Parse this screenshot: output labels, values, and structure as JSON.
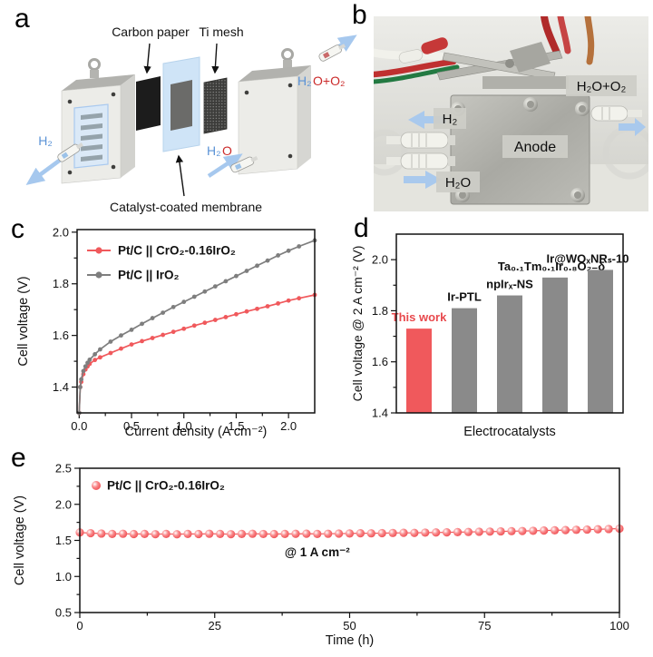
{
  "panels": {
    "a": {
      "label": "a",
      "labels": {
        "carbon_paper": "Carbon paper",
        "ti_mesh": "Ti mesh",
        "ccm": "Catalyst-coated membrane",
        "h2": "H₂",
        "h2o_h2": "H₂",
        "h2o_o": "O",
        "out_h2": "H₂",
        "out_o2": "O+O₂"
      }
    },
    "b": {
      "label": "b",
      "labels": {
        "outlet": "H₂O+O₂",
        "h2": "H₂",
        "anode": "Anode",
        "h2o": "H₂O"
      }
    },
    "c": {
      "label": "c"
    },
    "d": {
      "label": "d"
    },
    "e": {
      "label": "e"
    }
  },
  "colors": {
    "accent_red": "#f0595c",
    "series_gray": "#7e7e7e",
    "bar_gray": "#8a8a8a",
    "flow_arrow_blue": "#a6c8ee",
    "h2_label_blue": "#5b93d6",
    "o2_label_red": "#cb2a2a",
    "membrane_blue": "#cfe4f7"
  },
  "chart_data": [
    {
      "panel": "c",
      "type": "line",
      "xlabel": "Current density (A cm⁻²)",
      "ylabel": "Cell voltage (V)",
      "xlim": [
        -0.02,
        2.25
      ],
      "ylim": [
        1.3,
        2.01
      ],
      "xticks": [
        0.0,
        0.5,
        1.0,
        1.5,
        2.0
      ],
      "xtick_labels": [
        "0.0",
        "0.5",
        "1.0",
        "1.5",
        "2.0"
      ],
      "yticks": [
        1.4,
        1.6,
        1.8,
        2.0
      ],
      "ytick_labels": [
        "1.4",
        "1.6",
        "1.8",
        "2.0"
      ],
      "grid": false,
      "legend_position": "top-left",
      "series": [
        {
          "name": "Pt/C || CrO₂-0.16IrO₂",
          "color": "#f0595c",
          "x": [
            0,
            0.01,
            0.02,
            0.04,
            0.06,
            0.08,
            0.1,
            0.15,
            0.2,
            0.3,
            0.4,
            0.5,
            0.6,
            0.7,
            0.8,
            0.9,
            1.0,
            1.1,
            1.2,
            1.3,
            1.4,
            1.5,
            1.6,
            1.7,
            1.8,
            1.9,
            2.0,
            2.1,
            2.25
          ],
          "y": [
            1.3,
            1.4,
            1.42,
            1.45,
            1.468,
            1.48,
            1.49,
            1.505,
            1.515,
            1.532,
            1.549,
            1.565,
            1.578,
            1.59,
            1.602,
            1.614,
            1.626,
            1.638,
            1.649,
            1.66,
            1.671,
            1.682,
            1.693,
            1.703,
            1.713,
            1.724,
            1.735,
            1.744,
            1.757
          ]
        },
        {
          "name": "Pt/C || IrO₂",
          "color": "#7e7e7e",
          "x": [
            0,
            0.01,
            0.02,
            0.04,
            0.06,
            0.08,
            0.1,
            0.15,
            0.2,
            0.3,
            0.4,
            0.5,
            0.6,
            0.7,
            0.8,
            0.9,
            1.0,
            1.1,
            1.2,
            1.3,
            1.4,
            1.5,
            1.6,
            1.7,
            1.8,
            1.9,
            2.0,
            2.1,
            2.25
          ],
          "y": [
            1.3,
            1.4,
            1.43,
            1.462,
            1.48,
            1.494,
            1.506,
            1.527,
            1.546,
            1.576,
            1.6,
            1.622,
            1.645,
            1.667,
            1.688,
            1.71,
            1.73,
            1.75,
            1.77,
            1.79,
            1.81,
            1.83,
            1.85,
            1.87,
            1.89,
            1.91,
            1.928,
            1.945,
            1.968
          ]
        }
      ]
    },
    {
      "panel": "d",
      "type": "bar",
      "xlabel": "Electrocatalysts",
      "ylabel": "Cell voltage @ 2 A cm⁻² (V)",
      "ylim": [
        1.4,
        2.1
      ],
      "yticks": [
        1.4,
        1.6,
        1.8,
        2.0
      ],
      "ytick_labels": [
        "1.4",
        "1.6",
        "1.8",
        "2.0"
      ],
      "grid": false,
      "categories": [
        "This work",
        "Ir-PTL",
        "npIrₓ-NS",
        "Ta₀.₁Tm₀.₁Ir₀.₈O₂₋δ",
        "Ir@WOₓNRₛ-10"
      ],
      "values": [
        1.73,
        1.81,
        1.86,
        1.93,
        1.96
      ],
      "bar_colors": [
        "#f0595c",
        "#8a8a8a",
        "#8a8a8a",
        "#8a8a8a",
        "#8a8a8a"
      ],
      "label_colors": [
        "#e8494d",
        "#111111",
        "#111111",
        "#111111",
        "#111111"
      ]
    },
    {
      "panel": "e",
      "type": "scatter",
      "xlabel": "Time (h)",
      "ylabel": "Cell voltage (V)",
      "xlim": [
        0,
        100
      ],
      "ylim": [
        0.5,
        2.5
      ],
      "xticks": [
        0,
        25,
        50,
        75,
        100
      ],
      "xtick_labels": [
        "0",
        "25",
        "50",
        "75",
        "100"
      ],
      "yticks": [
        0.5,
        1.0,
        1.5,
        2.0,
        2.5
      ],
      "ytick_labels": [
        "0.5",
        "1.0",
        "1.5",
        "2.0",
        "2.5"
      ],
      "grid": false,
      "legend_position": "top-left",
      "annotation": {
        "text": "@ 1 A cm⁻²",
        "x": 44,
        "y": 1.28
      },
      "series": [
        {
          "name": "Pt/C || CrO₂-0.16IrO₂",
          "color": "#f0595c",
          "x": [
            0,
            2,
            4,
            6,
            8,
            10,
            12,
            14,
            16,
            18,
            20,
            22,
            24,
            26,
            28,
            30,
            32,
            34,
            36,
            38,
            40,
            42,
            44,
            46,
            48,
            50,
            52,
            54,
            56,
            58,
            60,
            62,
            64,
            66,
            68,
            70,
            72,
            74,
            76,
            78,
            80,
            82,
            84,
            86,
            88,
            90,
            92,
            94,
            96,
            98,
            100
          ],
          "y": [
            1.61,
            1.6,
            1.595,
            1.59,
            1.592,
            1.588,
            1.59,
            1.586,
            1.59,
            1.585,
            1.59,
            1.588,
            1.592,
            1.59,
            1.586,
            1.59,
            1.592,
            1.589,
            1.588,
            1.59,
            1.591,
            1.593,
            1.59,
            1.592,
            1.594,
            1.596,
            1.599,
            1.598,
            1.601,
            1.603,
            1.605,
            1.604,
            1.608,
            1.61,
            1.612,
            1.615,
            1.617,
            1.62,
            1.622,
            1.625,
            1.628,
            1.63,
            1.633,
            1.637,
            1.64,
            1.643,
            1.647,
            1.65,
            1.654,
            1.658,
            1.663
          ]
        }
      ]
    }
  ]
}
